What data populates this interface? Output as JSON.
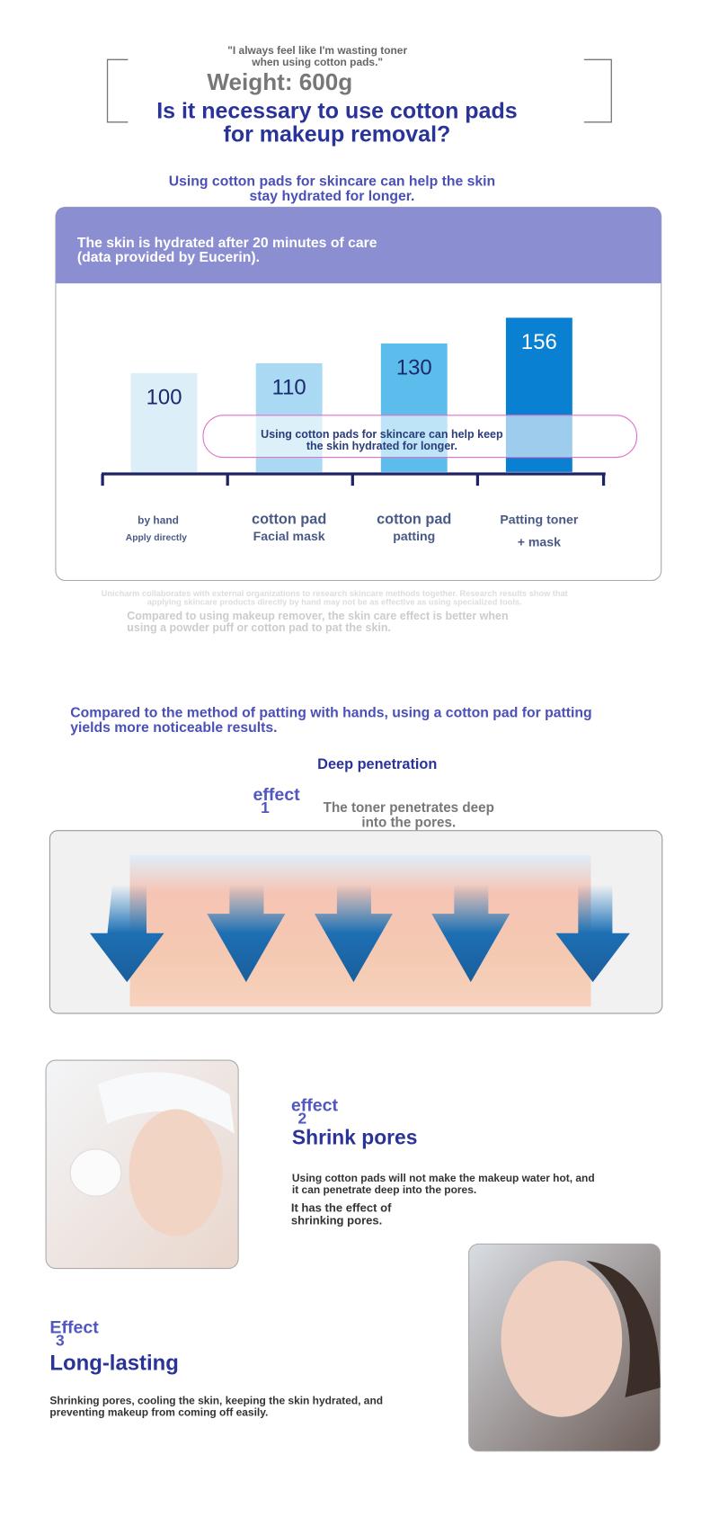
{
  "header": {
    "quote": "\"I always feel like I'm wasting toner when using cotton pads.\"",
    "weight": "Weight: 600g",
    "title": "Is it necessary to use cotton pads for makeup removal?"
  },
  "intro": "Using cotton pads for skincare can help the skin stay hydrated for longer.",
  "chart_data": {
    "type": "bar",
    "title": "The skin is hydrated after 20 minutes of care (data provided by Eucerin).",
    "categories": [
      "by hand",
      "cotton pad",
      "cotton pad",
      "Patting toner"
    ],
    "category_subtitles": [
      "Apply directly",
      "Facial mask",
      "patting",
      "+ mask"
    ],
    "values": [
      100,
      110,
      130,
      156
    ],
    "colors": [
      "#dceff9",
      "#a9d9f3",
      "#5cbdec",
      "#0a80d2"
    ],
    "ylim": [
      0,
      170
    ],
    "annotation": "Using cotton pads for skincare can help keep the skin hydrated for longer."
  },
  "chart_footnote": "Unicharm collaborates with external organizations to research skincare methods together. Research results show that applying skincare products directly by hand may not be as effective as using specialized tools.",
  "chart_caption": "Compared to using makeup remover, the skin care effect is better when using a powder puff or cotton pad to pat the skin.",
  "section_intro": "Compared to the method of patting with hands, using a cotton pad for patting yields more noticeable results.",
  "effects": [
    {
      "label": "effect",
      "number": "1",
      "heading": "Deep penetration",
      "text": "The toner penetrates deep into the pores."
    },
    {
      "label": "effect",
      "number": "2",
      "heading": "Shrink pores",
      "text": "Using cotton pads will not make the makeup water hot, and it can penetrate deep into the pores.",
      "note": "It has the effect of shrinking pores."
    },
    {
      "label": "Effect",
      "number": "3",
      "heading": "Long-lasting",
      "text": "Shrinking pores, cooling the skin, keeping the skin hydrated, and preventing makeup from coming off easily."
    }
  ]
}
